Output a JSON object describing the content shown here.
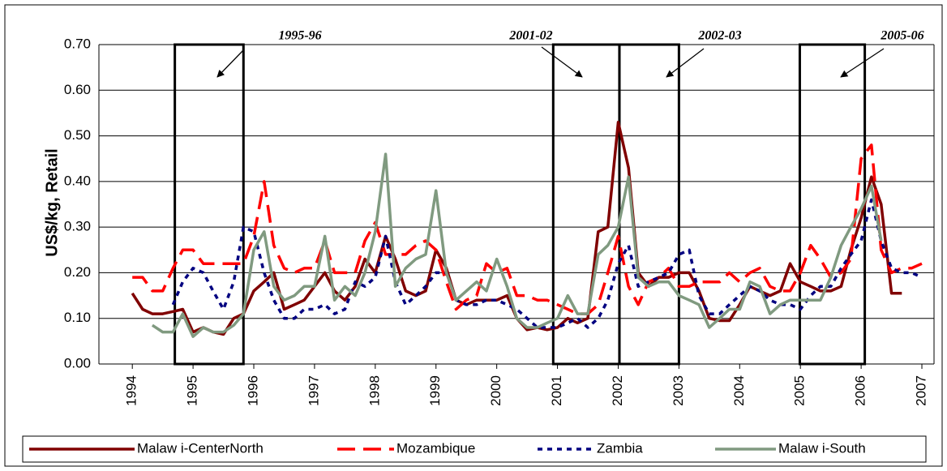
{
  "chart_data": {
    "type": "line",
    "y_label": "US$/kg, Retail",
    "x": [
      1994,
      1994.17,
      1994.33,
      1994.5,
      1994.67,
      1994.83,
      1995,
      1995.17,
      1995.33,
      1995.5,
      1995.67,
      1995.83,
      1996,
      1996.17,
      1996.33,
      1996.5,
      1996.67,
      1996.83,
      1997,
      1997.17,
      1997.33,
      1997.5,
      1997.67,
      1997.83,
      1998,
      1998.17,
      1998.33,
      1998.5,
      1998.67,
      1998.83,
      1999,
      1999.17,
      1999.33,
      1999.5,
      1999.67,
      1999.83,
      2000,
      2000.17,
      2000.33,
      2000.5,
      2000.67,
      2000.83,
      2001,
      2001.17,
      2001.33,
      2001.5,
      2001.67,
      2001.83,
      2002,
      2002.17,
      2002.33,
      2002.5,
      2002.67,
      2002.83,
      2003,
      2003.17,
      2003.33,
      2003.5,
      2003.67,
      2003.83,
      2004,
      2004.17,
      2004.33,
      2004.5,
      2004.67,
      2004.83,
      2005,
      2005.17,
      2005.33,
      2005.5,
      2005.67,
      2005.83,
      2006,
      2006.17,
      2006.33,
      2006.5,
      2006.67,
      2006.83,
      2007
    ],
    "series": [
      {
        "name": "Malaw i-CenterNorth",
        "color": "#800000",
        "style": "solid",
        "values": [
          0.155,
          0.12,
          0.11,
          0.11,
          0.115,
          0.12,
          0.07,
          0.08,
          0.07,
          0.065,
          0.1,
          0.11,
          0.16,
          0.18,
          0.2,
          0.12,
          0.13,
          0.14,
          0.17,
          0.2,
          0.16,
          0.14,
          0.17,
          0.23,
          0.2,
          0.28,
          0.23,
          0.16,
          0.15,
          0.16,
          0.25,
          0.21,
          0.14,
          0.13,
          0.14,
          0.14,
          0.14,
          0.15,
          0.1,
          0.075,
          0.08,
          0.075,
          0.08,
          0.1,
          0.09,
          0.1,
          0.29,
          0.3,
          0.53,
          0.43,
          0.2,
          0.17,
          0.19,
          0.19,
          0.2,
          0.2,
          0.16,
          0.1,
          0.095,
          0.095,
          0.13,
          0.17,
          0.16,
          0.15,
          0.16,
          0.22,
          0.18,
          0.17,
          0.16,
          0.16,
          0.17,
          0.25,
          0.32,
          0.41,
          0.35,
          0.155,
          0.155,
          null,
          null
        ]
      },
      {
        "name": "Mozambique",
        "color": "#ff0000",
        "style": "dashed",
        "values": [
          0.19,
          0.19,
          0.16,
          0.16,
          0.21,
          0.25,
          0.25,
          0.22,
          0.22,
          0.22,
          0.22,
          0.22,
          0.28,
          0.4,
          0.26,
          0.21,
          0.2,
          0.21,
          0.21,
          0.27,
          0.2,
          0.2,
          0.2,
          0.27,
          0.31,
          0.24,
          0.24,
          0.24,
          0.26,
          0.27,
          0.25,
          0.18,
          0.12,
          0.14,
          0.15,
          0.22,
          0.2,
          0.21,
          0.15,
          0.15,
          0.14,
          0.14,
          0.13,
          0.12,
          0.11,
          0.11,
          0.13,
          0.2,
          0.28,
          0.17,
          0.13,
          0.18,
          0.19,
          0.21,
          0.17,
          0.17,
          0.18,
          0.18,
          0.18,
          0.2,
          0.18,
          0.2,
          0.21,
          0.17,
          0.16,
          0.16,
          0.2,
          0.26,
          0.23,
          0.19,
          0.2,
          0.23,
          0.45,
          0.48,
          0.25,
          0.2,
          0.21,
          0.21,
          0.22
        ]
      },
      {
        "name": "Zambia",
        "color": "#000080",
        "style": "dotted",
        "values": [
          null,
          null,
          null,
          null,
          0.13,
          0.18,
          0.21,
          0.2,
          0.16,
          0.12,
          0.18,
          0.3,
          0.29,
          0.2,
          0.14,
          0.1,
          0.1,
          0.12,
          0.12,
          0.13,
          0.11,
          0.12,
          0.18,
          0.17,
          0.19,
          0.28,
          0.18,
          0.13,
          0.15,
          0.17,
          0.2,
          0.2,
          0.14,
          0.13,
          0.13,
          0.14,
          0.14,
          0.13,
          0.12,
          0.1,
          0.08,
          0.08,
          0.08,
          0.09,
          0.1,
          0.08,
          0.1,
          0.14,
          0.22,
          0.26,
          0.17,
          0.18,
          0.19,
          0.2,
          0.24,
          0.25,
          0.15,
          0.11,
          0.11,
          0.13,
          0.15,
          0.17,
          0.16,
          0.14,
          0.13,
          0.13,
          0.12,
          0.15,
          0.17,
          0.17,
          0.21,
          0.24,
          0.27,
          0.36,
          0.27,
          0.21,
          0.2,
          0.2,
          0.19
        ]
      },
      {
        "name": "Malaw i-South",
        "color": "#809a80",
        "style": "solid",
        "values": [
          null,
          null,
          0.085,
          0.07,
          0.07,
          0.11,
          0.06,
          0.08,
          0.07,
          0.07,
          0.085,
          0.11,
          0.25,
          0.29,
          0.17,
          0.14,
          0.15,
          0.17,
          0.17,
          0.28,
          0.14,
          0.17,
          0.15,
          0.2,
          0.29,
          0.46,
          0.17,
          0.21,
          0.23,
          0.24,
          0.38,
          0.2,
          0.14,
          0.16,
          0.18,
          0.16,
          0.23,
          0.17,
          0.1,
          0.08,
          0.08,
          0.09,
          0.1,
          0.15,
          0.11,
          0.11,
          0.24,
          0.26,
          0.3,
          0.41,
          0.19,
          0.17,
          0.18,
          0.18,
          0.15,
          0.14,
          0.13,
          0.08,
          0.1,
          0.12,
          0.12,
          0.18,
          0.17,
          0.11,
          0.13,
          0.14,
          0.14,
          0.14,
          0.14,
          0.19,
          0.26,
          0.3,
          0.34,
          0.39,
          0.27,
          null,
          null,
          null,
          null
        ]
      }
    ],
    "annotations": [
      {
        "label": "1995-96",
        "x": [
          1994.7,
          1995.83
        ]
      },
      {
        "label": "2001-02",
        "x": [
          2000.93,
          2002.02
        ]
      },
      {
        "label": "2002-03",
        "x": [
          2002.02,
          2003.0
        ]
      },
      {
        "label": "2005-06",
        "x": [
          2004.99,
          2006.06
        ]
      }
    ],
    "xlim": [
      1993.45,
      2007.2
    ],
    "xticks": [
      1994,
      1995,
      1996,
      1997,
      1998,
      1999,
      2000,
      2001,
      2002,
      2003,
      2004,
      2005,
      2006,
      2007
    ],
    "ylim": [
      0,
      0.7
    ],
    "yticks": [
      {
        "value": 0,
        "label": "0.00"
      },
      {
        "value": 0.1,
        "label": "0.10"
      },
      {
        "value": 0.2,
        "label": "0.20"
      },
      {
        "value": 0.3,
        "label": "0.30"
      },
      {
        "value": 0.4,
        "label": "0.40"
      },
      {
        "value": 0.5,
        "label": "0.50"
      },
      {
        "value": 0.6,
        "label": "0.60"
      },
      {
        "value": 0.7,
        "label": "0.70"
      }
    ],
    "grid": true,
    "legend": "bottom"
  }
}
